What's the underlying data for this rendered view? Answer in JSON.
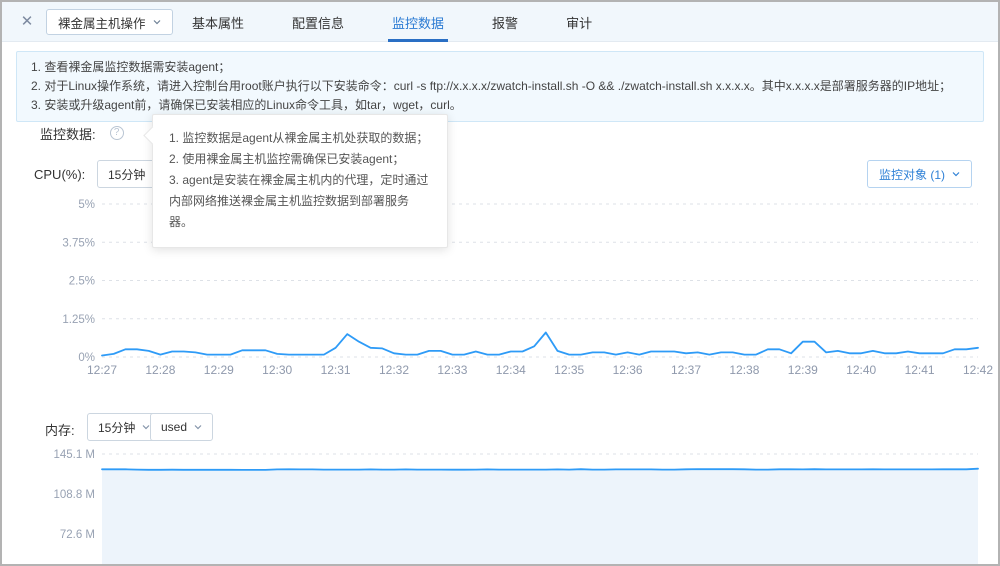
{
  "window": {
    "close_icon": "✕"
  },
  "topbar": {
    "operation_button": {
      "label": "裸金属主机操作"
    },
    "tabs": [
      {
        "label": "基本属性",
        "active": false
      },
      {
        "label": "配置信息",
        "active": false
      },
      {
        "label": "监控数据",
        "active": true
      },
      {
        "label": "报警",
        "active": false
      },
      {
        "label": "审计",
        "active": false
      }
    ]
  },
  "info_banner": {
    "lines": [
      "1. 查看裸金属监控数据需安装agent；",
      "2. 对于Linux操作系统，请进入控制台用root账户执行以下安装命令：curl -s ftp://x.x.x.x/zwatch-install.sh -O && ./zwatch-install.sh x.x.x.x。其中x.x.x.x是部署服务器的IP地址；",
      "3. 安装或升级agent前，请确保已安装相应的Linux命令工具，如tar，wget，curl。"
    ]
  },
  "monitor_section": {
    "label": "监控数据:",
    "help_icon": "?"
  },
  "tooltip": {
    "lines": [
      "1. 监控数据是agent从裸金属主机处获取的数据；",
      "2. 使用裸金属主机监控需确保已安装agent；",
      "3. agent是安装在裸金属主机内的代理，定时通过内部网络推送裸金属主机监控数据到部署服务器。"
    ]
  },
  "cpu_section": {
    "label": "CPU(%):",
    "period_select": "15分钟",
    "monitor_target_button": "监控对象 (1)"
  },
  "memory_section": {
    "label": "内存:",
    "period_select": "15分钟",
    "metric_select": "used"
  },
  "colors": {
    "accent_blue": "#2b7bd3",
    "line_blue": "#2e9bf7",
    "area_fill": "#edf4fb",
    "grid": "#dde1e7",
    "tick_text": "#98a2b3"
  },
  "chart_data": [
    {
      "type": "line",
      "title": "CPU(%)",
      "ylabel": "CPU usage percent",
      "ylim": [
        0,
        5
      ],
      "grid": true,
      "line_color": "#2e9bf7",
      "ytick_labels": [
        "5%",
        "3.75%",
        "2.5%",
        "1.25%",
        "0%"
      ],
      "ytick_values": [
        5,
        3.75,
        2.5,
        1.25,
        0
      ],
      "x_labels": [
        "12:27",
        "12:28",
        "12:29",
        "12:30",
        "12:31",
        "12:32",
        "12:33",
        "12:34",
        "12:35",
        "12:36",
        "12:37",
        "12:38",
        "12:39",
        "12:40",
        "12:41",
        "12:42"
      ],
      "values": [
        0.05,
        0.1,
        0.25,
        0.25,
        0.2,
        0.08,
        0.18,
        0.18,
        0.15,
        0.08,
        0.08,
        0.08,
        0.22,
        0.22,
        0.22,
        0.1,
        0.08,
        0.08,
        0.08,
        0.08,
        0.3,
        0.75,
        0.5,
        0.3,
        0.28,
        0.12,
        0.08,
        0.08,
        0.2,
        0.2,
        0.08,
        0.08,
        0.18,
        0.08,
        0.08,
        0.18,
        0.18,
        0.35,
        0.8,
        0.2,
        0.08,
        0.08,
        0.15,
        0.15,
        0.08,
        0.15,
        0.08,
        0.18,
        0.18,
        0.18,
        0.12,
        0.15,
        0.08,
        0.15,
        0.15,
        0.08,
        0.08,
        0.25,
        0.25,
        0.12,
        0.5,
        0.5,
        0.15,
        0.2,
        0.12,
        0.12,
        0.2,
        0.12,
        0.12,
        0.18,
        0.12,
        0.12,
        0.12,
        0.25,
        0.25,
        0.3
      ]
    },
    {
      "type": "area",
      "title": "内存 (used)",
      "ylabel": "Memory used (M)",
      "grid": true,
      "line_color": "#2e9bf7",
      "fill_color": "#edf4fb",
      "ytick_labels": [
        "145.1 M",
        "108.8 M",
        "72.6 M"
      ],
      "ytick_values": [
        145.1,
        108.8,
        72.6
      ],
      "x_labels": [],
      "values": [
        131.2,
        131.2,
        131.2,
        131.0,
        130.8,
        130.8,
        130.9,
        130.8,
        130.8,
        130.8,
        130.8,
        130.8,
        130.7,
        130.7,
        130.7,
        131.1,
        131.2,
        131.1,
        131.1,
        131.0,
        131.0,
        131.0,
        131.0,
        131.1,
        131.0,
        131.0,
        131.1,
        131.0,
        131.0,
        131.0,
        130.9,
        130.9,
        131.0,
        131.1,
        131.0,
        131.0,
        131.0,
        131.0,
        131.0,
        131.1,
        131.0,
        131.3,
        131.0,
        131.0,
        131.1,
        131.1,
        131.1,
        131.1,
        131.0,
        131.0,
        131.2,
        131.4,
        131.3,
        131.3,
        131.3,
        131.2,
        131.0,
        131.0,
        131.2,
        131.2,
        131.1,
        131.3,
        131.1,
        131.1,
        131.1,
        131.1,
        131.2,
        131.1,
        131.1,
        131.1,
        131.1,
        131.1,
        131.2,
        131.2,
        131.2,
        131.8
      ]
    }
  ]
}
